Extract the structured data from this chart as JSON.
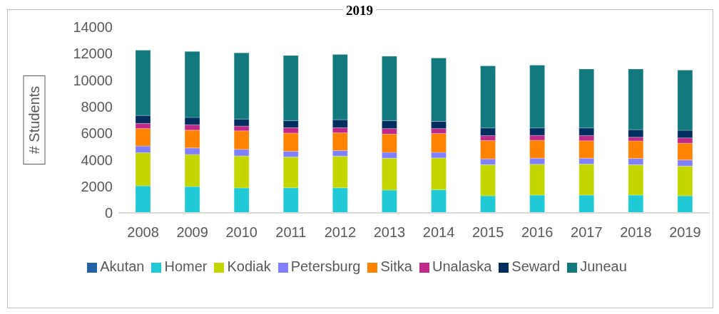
{
  "chart_data": {
    "type": "bar",
    "title": "2019",
    "ylabel": "# Students",
    "stacked": true,
    "legend": "bottom",
    "grid": false,
    "categories": [
      "2008",
      "2009",
      "2010",
      "2011",
      "2012",
      "2013",
      "2014",
      "2015",
      "2016",
      "2017",
      "2018",
      "2019"
    ],
    "ylim": [
      0,
      14000
    ],
    "yticks": [
      0,
      2000,
      4000,
      6000,
      8000,
      10000,
      12000,
      14000
    ],
    "series": [
      {
        "name": "Akutan",
        "color": "#2462a8",
        "values": [
          0,
          0,
          0,
          0,
          0,
          0,
          0,
          0,
          0,
          0,
          0,
          0
        ]
      },
      {
        "name": "Homer",
        "color": "#1fcad6",
        "values": [
          2040,
          1980,
          1880,
          1890,
          1890,
          1720,
          1750,
          1290,
          1340,
          1340,
          1340,
          1290
        ]
      },
      {
        "name": "Kodiak",
        "color": "#c4d600",
        "values": [
          2490,
          2420,
          2410,
          2320,
          2390,
          2400,
          2390,
          2340,
          2320,
          2340,
          2290,
          2240
        ]
      },
      {
        "name": "Petersburg",
        "color": "#8080ff",
        "values": [
          510,
          490,
          500,
          430,
          420,
          440,
          420,
          440,
          460,
          440,
          470,
          460
        ]
      },
      {
        "name": "Sitka",
        "color": "#ff8200",
        "values": [
          1310,
          1340,
          1390,
          1370,
          1330,
          1380,
          1420,
          1380,
          1350,
          1310,
          1320,
          1260
        ]
      },
      {
        "name": "Unalaska",
        "color": "#c0288a",
        "values": [
          390,
          410,
          360,
          410,
          390,
          410,
          370,
          370,
          370,
          390,
          280,
          400
        ]
      },
      {
        "name": "Seward",
        "color": "#002f5f",
        "values": [
          600,
          550,
          530,
          530,
          600,
          600,
          550,
          580,
          560,
          580,
          570,
          570
        ]
      },
      {
        "name": "Juneau",
        "color": "#127a7e",
        "values": [
          4920,
          4970,
          4990,
          4910,
          4920,
          4850,
          4770,
          4670,
          4730,
          4440,
          4570,
          4540
        ]
      }
    ]
  }
}
